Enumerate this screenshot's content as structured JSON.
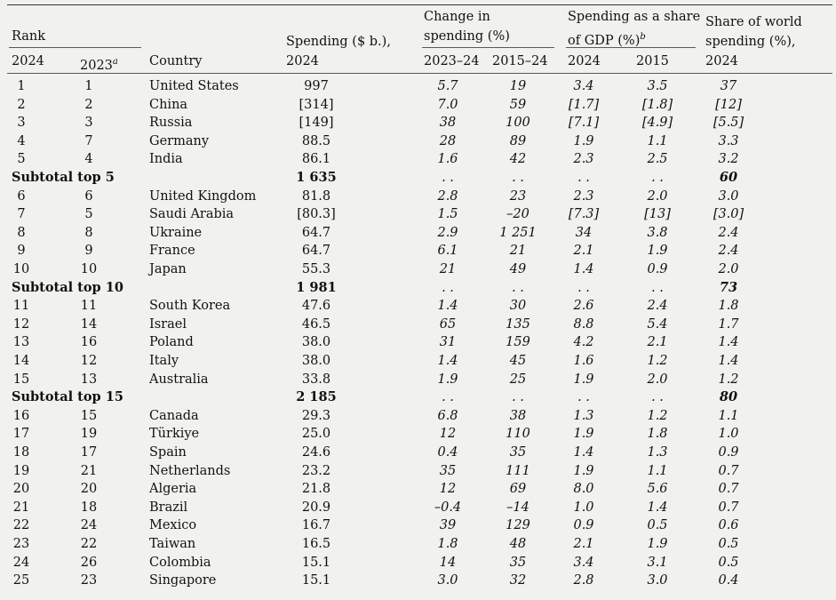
{
  "header": {
    "rank": "Rank",
    "rank_2024": "2024",
    "rank_2023": "2023",
    "rank_2023_note": "a",
    "country": "Country",
    "spending_line1": "Spending ($ b.),",
    "spending_line2": "2024",
    "change_line1": "Change in",
    "change_line2": "spending (%)",
    "change_a": "2023–24",
    "change_b": "2015–24",
    "gdp_line1": "Spending as a share",
    "gdp_line2": "of GDP (%)",
    "gdp_note": "b",
    "gdp_a": "2024",
    "gdp_b": "2015",
    "world_line1": "Share of world",
    "world_line2": "spending (%),",
    "world_line3": "2024"
  },
  "rows": [
    {
      "type": "data",
      "r24": "1",
      "r23": "1",
      "country": "United States",
      "spend": "997",
      "ch1": "5.7",
      "ch2": "19",
      "g24": "3.4",
      "g15": "3.5",
      "world": "37"
    },
    {
      "type": "data",
      "r24": "2",
      "r23": "2",
      "country": "China",
      "spend": "[314]",
      "ch1": "7.0",
      "ch2": "59",
      "g24": "[1.7]",
      "g15": "[1.8]",
      "world": "[12]"
    },
    {
      "type": "data",
      "r24": "3",
      "r23": "3",
      "country": "Russia",
      "spend": "[149]",
      "ch1": "38",
      "ch2": "100",
      "g24": "[7.1]",
      "g15": "[4.9]",
      "world": "[5.5]"
    },
    {
      "type": "data",
      "r24": "4",
      "r23": "7",
      "country": "Germany",
      "spend": "88.5",
      "ch1": "28",
      "ch2": "89",
      "g24": "1.9",
      "g15": "1.1",
      "world": "3.3"
    },
    {
      "type": "data",
      "r24": "5",
      "r23": "4",
      "country": "India",
      "spend": "86.1",
      "ch1": "1.6",
      "ch2": "42",
      "g24": "2.3",
      "g15": "2.5",
      "world": "3.2"
    },
    {
      "type": "subtotal",
      "label": "Subtotal top 5",
      "spend": "1 635",
      "ch1": ". .",
      "ch2": ". .",
      "g24": ". .",
      "g15": ". .",
      "world": "60"
    },
    {
      "type": "data",
      "r24": "6",
      "r23": "6",
      "country": "United Kingdom",
      "spend": "81.8",
      "ch1": "2.8",
      "ch2": "23",
      "g24": "2.3",
      "g15": "2.0",
      "world": "3.0"
    },
    {
      "type": "data",
      "r24": "7",
      "r23": "5",
      "country": "Saudi Arabia",
      "spend": "[80.3]",
      "ch1": "1.5",
      "ch2": "–20",
      "g24": "[7.3]",
      "g15": "[13]",
      "world": "[3.0]"
    },
    {
      "type": "data",
      "r24": "8",
      "r23": "8",
      "country": "Ukraine",
      "spend": "64.7",
      "ch1": "2.9",
      "ch2": "1 251",
      "g24": "34",
      "g15": "3.8",
      "world": "2.4"
    },
    {
      "type": "data",
      "r24": "9",
      "r23": "9",
      "country": "France",
      "spend": "64.7",
      "ch1": "6.1",
      "ch2": "21",
      "g24": "2.1",
      "g15": "1.9",
      "world": "2.4"
    },
    {
      "type": "data",
      "r24": "10",
      "r23": "10",
      "country": "Japan",
      "spend": "55.3",
      "ch1": "21",
      "ch2": "49",
      "g24": "1.4",
      "g15": "0.9",
      "world": "2.0"
    },
    {
      "type": "subtotal",
      "label": "Subtotal top 10",
      "spend": "1 981",
      "ch1": ". .",
      "ch2": ". .",
      "g24": ". .",
      "g15": ". .",
      "world": "73"
    },
    {
      "type": "data",
      "r24": "11",
      "r23": "11",
      "country": "South Korea",
      "spend": "47.6",
      "ch1": "1.4",
      "ch2": "30",
      "g24": "2.6",
      "g15": "2.4",
      "world": "1.8"
    },
    {
      "type": "data",
      "r24": "12",
      "r23": "14",
      "country": "Israel",
      "spend": "46.5",
      "ch1": "65",
      "ch2": "135",
      "g24": "8.8",
      "g15": "5.4",
      "world": "1.7"
    },
    {
      "type": "data",
      "r24": "13",
      "r23": "16",
      "country": "Poland",
      "spend": "38.0",
      "ch1": "31",
      "ch2": "159",
      "g24": "4.2",
      "g15": "2.1",
      "world": "1.4"
    },
    {
      "type": "data",
      "r24": "14",
      "r23": "12",
      "country": "Italy",
      "spend": "38.0",
      "ch1": "1.4",
      "ch2": "45",
      "g24": "1.6",
      "g15": "1.2",
      "world": "1.4"
    },
    {
      "type": "data",
      "r24": "15",
      "r23": "13",
      "country": "Australia",
      "spend": "33.8",
      "ch1": "1.9",
      "ch2": "25",
      "g24": "1.9",
      "g15": "2.0",
      "world": "1.2"
    },
    {
      "type": "subtotal",
      "label": "Subtotal top 15",
      "spend": "2 185",
      "ch1": ". .",
      "ch2": ". .",
      "g24": ". .",
      "g15": ". .",
      "world": "80"
    },
    {
      "type": "data",
      "r24": "16",
      "r23": "15",
      "country": "Canada",
      "spend": "29.3",
      "ch1": "6.8",
      "ch2": "38",
      "g24": "1.3",
      "g15": "1.2",
      "world": "1.1"
    },
    {
      "type": "data",
      "r24": "17",
      "r23": "19",
      "country": "Türkiye",
      "spend": "25.0",
      "ch1": "12",
      "ch2": "110",
      "g24": "1.9",
      "g15": "1.8",
      "world": "1.0"
    },
    {
      "type": "data",
      "r24": "18",
      "r23": "17",
      "country": "Spain",
      "spend": "24.6",
      "ch1": "0.4",
      "ch2": "35",
      "g24": "1.4",
      "g15": "1.3",
      "world": "0.9"
    },
    {
      "type": "data",
      "r24": "19",
      "r23": "21",
      "country": "Netherlands",
      "spend": "23.2",
      "ch1": "35",
      "ch2": "111",
      "g24": "1.9",
      "g15": "1.1",
      "world": "0.7"
    },
    {
      "type": "data",
      "r24": "20",
      "r23": "20",
      "country": "Algeria",
      "spend": "21.8",
      "ch1": "12",
      "ch2": "69",
      "g24": "8.0",
      "g15": "5.6",
      "world": "0.7"
    },
    {
      "type": "data",
      "r24": "21",
      "r23": "18",
      "country": "Brazil",
      "spend": "20.9",
      "ch1": "–0.4",
      "ch2": "–14",
      "g24": "1.0",
      "g15": "1.4",
      "world": "0.7"
    },
    {
      "type": "data",
      "r24": "22",
      "r23": "24",
      "country": "Mexico",
      "spend": "16.7",
      "ch1": "39",
      "ch2": "129",
      "g24": "0.9",
      "g15": "0.5",
      "world": "0.6"
    },
    {
      "type": "data",
      "r24": "23",
      "r23": "22",
      "country": "Taiwan",
      "spend": "16.5",
      "ch1": "1.8",
      "ch2": "48",
      "g24": "2.1",
      "g15": "1.9",
      "world": "0.5"
    },
    {
      "type": "data",
      "r24": "24",
      "r23": "26",
      "country": "Colombia",
      "spend": "15.1",
      "ch1": "14",
      "ch2": "35",
      "g24": "3.4",
      "g15": "3.1",
      "world": "0.5"
    },
    {
      "type": "data",
      "r24": "25",
      "r23": "23",
      "country": "Singapore",
      "spend": "15.1",
      "ch1": "3.0",
      "ch2": "32",
      "g24": "2.8",
      "g15": "3.0",
      "world": "0.4"
    }
  ]
}
